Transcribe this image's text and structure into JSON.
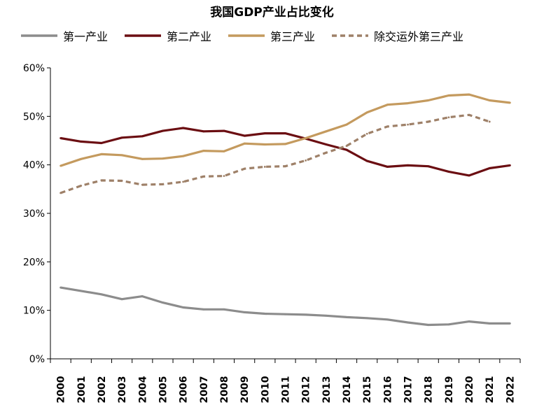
{
  "chart_data": {
    "type": "line",
    "title": "我国GDP产业占比变化",
    "xlabel": "",
    "ylabel": "",
    "x": [
      "2000",
      "2001",
      "2002",
      "2003",
      "2004",
      "2005",
      "2006",
      "2007",
      "2008",
      "2009",
      "2010",
      "2011",
      "2012",
      "2013",
      "2014",
      "2015",
      "2016",
      "2017",
      "2018",
      "2019",
      "2020",
      "2021",
      "2022"
    ],
    "ylim": [
      0,
      60
    ],
    "yticks": [
      "0%",
      "10%",
      "20%",
      "30%",
      "40%",
      "50%",
      "60%"
    ],
    "ytick_values": [
      0,
      10,
      20,
      30,
      40,
      50,
      60
    ],
    "grid": false,
    "legend_position": "top",
    "series": [
      {
        "name": "第一产业",
        "color": "#8c8c8c",
        "dashed": false,
        "values": [
          14.7,
          14.0,
          13.3,
          12.3,
          12.9,
          11.6,
          10.6,
          10.2,
          10.2,
          9.6,
          9.3,
          9.2,
          9.1,
          8.9,
          8.6,
          8.4,
          8.1,
          7.5,
          7.0,
          7.1,
          7.7,
          7.3,
          7.3
        ]
      },
      {
        "name": "第二产业",
        "color": "#6b0e12",
        "dashed": false,
        "values": [
          45.5,
          44.8,
          44.5,
          45.6,
          45.9,
          47.0,
          47.6,
          46.9,
          47.0,
          46.0,
          46.5,
          46.5,
          45.4,
          44.2,
          43.1,
          40.8,
          39.6,
          39.9,
          39.7,
          38.6,
          37.8,
          39.3,
          39.9
        ]
      },
      {
        "name": "第三产业",
        "color": "#c49a5e",
        "dashed": false,
        "values": [
          39.8,
          41.2,
          42.2,
          42.0,
          41.2,
          41.3,
          41.8,
          42.9,
          42.8,
          44.4,
          44.2,
          44.3,
          45.5,
          46.9,
          48.3,
          50.8,
          52.4,
          52.7,
          53.3,
          54.3,
          54.5,
          53.3,
          52.8
        ]
      },
      {
        "name": "除交运外第三产业",
        "color": "#9e8068",
        "dashed": true,
        "values": [
          34.2,
          35.7,
          36.8,
          36.7,
          35.9,
          36.0,
          36.5,
          37.6,
          37.7,
          39.2,
          39.6,
          39.7,
          40.9,
          42.5,
          43.9,
          46.4,
          47.9,
          48.3,
          48.9,
          49.8,
          50.3,
          48.9,
          null
        ]
      }
    ]
  }
}
